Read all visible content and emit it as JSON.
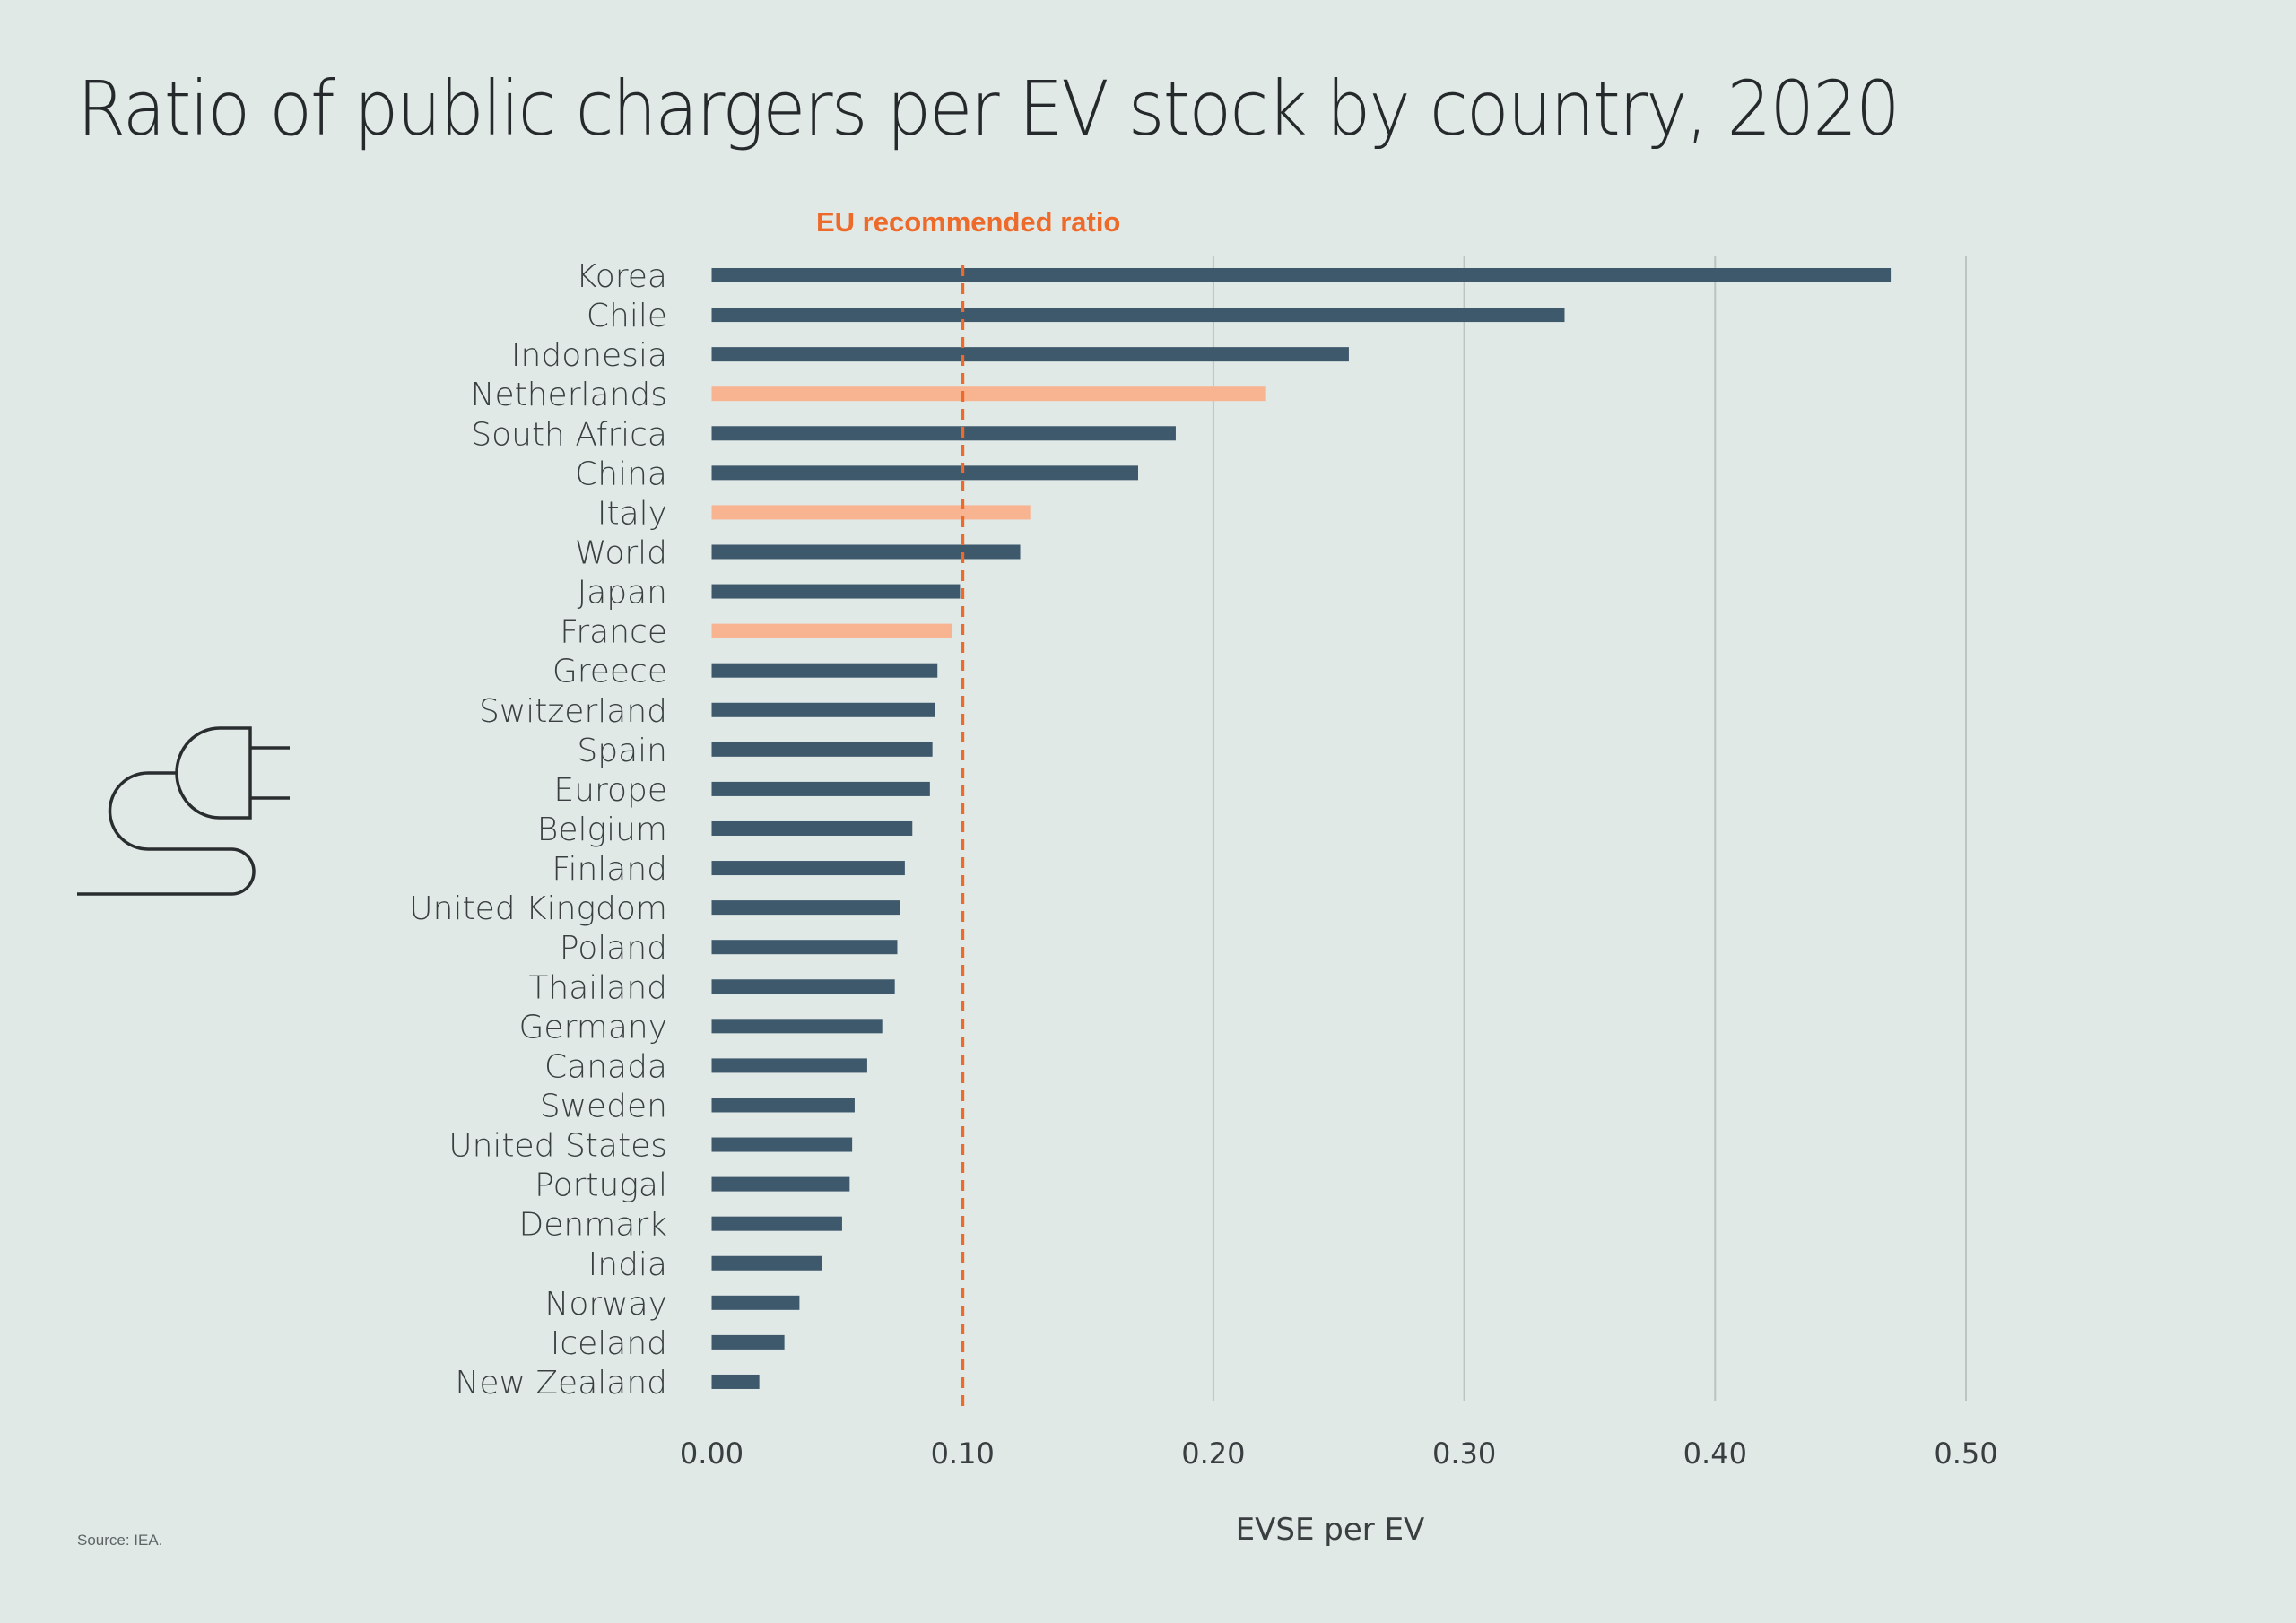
{
  "title": "Ratio of public chargers per EV stock by country, 2020",
  "source": "Source: IEA.",
  "icons": {
    "plug": "plug-icon"
  },
  "colors": {
    "background": "#e0e9e6",
    "bar_default": "#3e586c",
    "bar_highlight": "#f8b391",
    "reference_line": "#ee6a2a",
    "gridline": "#bcc3c2",
    "text": "#3a3e41"
  },
  "chart_data": {
    "type": "bar",
    "orientation": "horizontal",
    "title": "Ratio of public chargers per EV stock by country, 2020",
    "xlabel": "EVSE per EV",
    "ylabel": "",
    "xlim": [
      0,
      0.5
    ],
    "xticks": [
      "0.00",
      "0.10",
      "0.20",
      "0.30",
      "0.40",
      "0.50"
    ],
    "xtick_values": [
      0,
      0.1,
      0.2,
      0.3,
      0.4,
      0.5
    ],
    "grid": "vertical",
    "categories": [
      "Korea",
      "Chile",
      "Indonesia",
      "Netherlands",
      "South Africa",
      "China",
      "Italy",
      "World",
      "Japan",
      "France",
      "Greece",
      "Switzerland",
      "Spain",
      "Europe",
      "Belgium",
      "Finland",
      "United Kingdom",
      "Poland",
      "Thailand",
      "Germany",
      "Canada",
      "Sweden",
      "United States",
      "Portugal",
      "Denmark",
      "India",
      "Norway",
      "Iceland",
      "New Zealand"
    ],
    "values": [
      0.47,
      0.34,
      0.254,
      0.221,
      0.185,
      0.17,
      0.127,
      0.123,
      0.099,
      0.096,
      0.09,
      0.089,
      0.088,
      0.087,
      0.08,
      0.077,
      0.075,
      0.074,
      0.073,
      0.068,
      0.062,
      0.057,
      0.056,
      0.055,
      0.052,
      0.044,
      0.035,
      0.029,
      0.019
    ],
    "highlighted": [
      "Netherlands",
      "Italy",
      "France"
    ],
    "reference_line": {
      "label": "EU recommended ratio",
      "value": 0.1,
      "style": "dashed"
    }
  }
}
